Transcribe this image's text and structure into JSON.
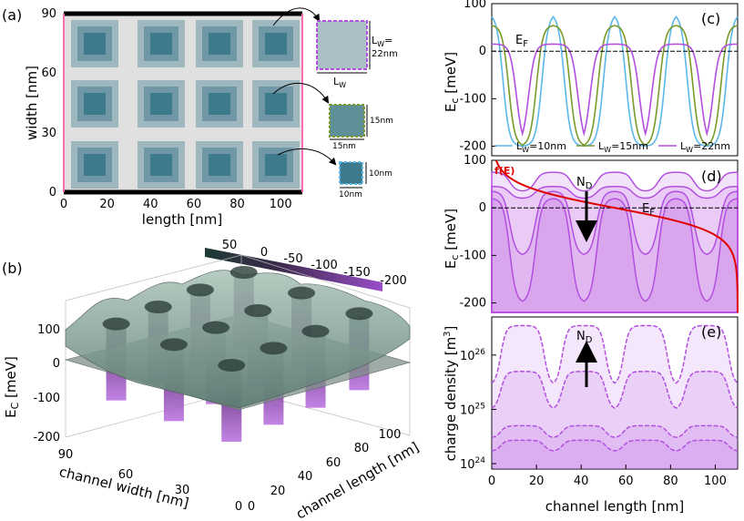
{
  "colors": {
    "well_outer": "#9fb7bf",
    "well_mid": "#6f97a5",
    "well_inner": "#3d7a8c",
    "background": "#e0e0e0",
    "lw10": "#5bb8e8",
    "lw15": "#7a9a2a",
    "lw22": "#b34fe0",
    "fermi": "#e00000",
    "fill_light": "#ead6fb",
    "surface_top": "#9fb6ad",
    "surface_bottom": "#8a3fa8"
  },
  "icons": [
    "arrow-icon"
  ],
  "panel_a": {
    "label": "(a)",
    "xlabel": "length [nm]",
    "ylabel": "width [nm]",
    "xticks": [
      "0",
      "20",
      "40",
      "60",
      "80",
      "100"
    ],
    "yticks": [
      "0",
      "30",
      "60",
      "90"
    ],
    "insets": [
      {
        "lw_label_top": "L",
        "lw_sub": "W",
        "lw_eq": "=",
        "lw_val": "22nm",
        "width_label": "L",
        "width_sub": "W"
      },
      {
        "size_side": "15nm",
        "size_bottom": "15nm"
      },
      {
        "size_side": "10nm",
        "size_bottom": "10nm"
      }
    ]
  },
  "panel_b": {
    "label": "(b)",
    "zlabel_main": "E",
    "zlabel_sub": "C",
    "zlabel_unit": " [meV]",
    "zticks": [
      "100",
      "0",
      "-100",
      "-200"
    ],
    "xlabel": "channel width [nm]",
    "xticks": [
      "90",
      "60",
      "30",
      "0"
    ],
    "ylabel": "channel length [nm]",
    "yticks": [
      "0",
      "20",
      "40",
      "60",
      "80",
      "100"
    ],
    "colorbar_ticks": [
      "50",
      "0",
      "-50",
      "-100",
      "-150",
      "-200"
    ]
  },
  "chart_data": [
    {
      "type": "line",
      "panel": "(c)",
      "xlim": [
        0,
        110
      ],
      "ylim": [
        -220,
        100
      ],
      "yticks": [
        "100",
        "0",
        "-100",
        "-200"
      ],
      "ylabel_main": "E",
      "ylabel_sub": "c",
      "ylabel_unit": " [meV]",
      "annotation": {
        "main": "E",
        "sub": "F"
      },
      "series": [
        {
          "name_main": "L",
          "name_sub": "W",
          "name_val": "=10nm",
          "color": "lw10",
          "barrier": 80,
          "well": -200,
          "centers": [
            0,
            27.5,
            55,
            82.5,
            110
          ],
          "halfwidth": 5
        },
        {
          "name_main": "L",
          "name_sub": "W",
          "name_val": "=15nm",
          "color": "lw15",
          "barrier": 55,
          "well": -200,
          "centers": [
            0,
            27.5,
            55,
            82.5,
            110
          ],
          "halfwidth": 7.5
        },
        {
          "name_main": "L",
          "name_sub": "W",
          "name_val": "=22nm",
          "color": "lw22",
          "barrier": 15,
          "well": -200,
          "centers": [
            0,
            27.5,
            55,
            82.5,
            110
          ],
          "halfwidth": 11
        }
      ]
    },
    {
      "type": "area",
      "panel": "(d)",
      "xlim": [
        0,
        110
      ],
      "ylim": [
        -220,
        100
      ],
      "yticks": [
        "100",
        "0",
        "-100",
        "-200"
      ],
      "ylabel_main": "E",
      "ylabel_sub": "c",
      "ylabel_unit": " [meV]",
      "fermi_label": "f(E)",
      "nd_label": {
        "main": "N",
        "sub": "D"
      },
      "ef_label": {
        "main": "E",
        "sub": "F"
      },
      "series": [
        {
          "barrier": 75,
          "well": 35
        },
        {
          "barrier": 45,
          "well": 20
        },
        {
          "barrier": 35,
          "well": -100
        },
        {
          "barrier": 20,
          "well": -200
        }
      ]
    },
    {
      "type": "line",
      "panel": "(e)",
      "xlim": [
        0,
        110
      ],
      "xticks": [
        "0",
        "20",
        "40",
        "60",
        "80",
        "100"
      ],
      "xlabel": "channel length [nm]",
      "ylabel_main": "charge density [m",
      "ylabel_sup": "3",
      "ylabel_end": "]",
      "yscale": "log",
      "ylim": [
        1e+24,
        4e+26
      ],
      "ytick_values": [
        1e+24,
        1e+25,
        1e+26
      ],
      "yticks": [
        {
          "base": "10",
          "exp": "24"
        },
        {
          "base": "10",
          "exp": "25"
        },
        {
          "base": "10",
          "exp": "26"
        }
      ],
      "nd_label": {
        "main": "N",
        "sub": "D"
      },
      "series": [
        {
          "high": 3.5e+26,
          "low": 2.8e+25
        },
        {
          "high": 5e+25,
          "low": 1e+25
        },
        {
          "high": 5e+24,
          "low": 3e+24
        },
        {
          "high": 2.7e+24,
          "low": 1.7e+24
        }
      ]
    }
  ]
}
